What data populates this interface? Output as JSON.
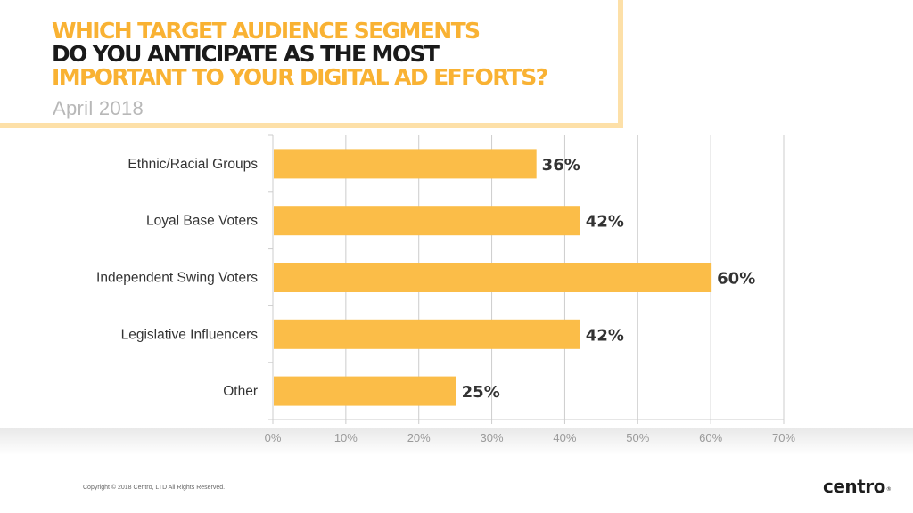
{
  "header": {
    "title_line1": "WHICH TARGET AUDIENCE SEGMENTS",
    "title_line2": "DO YOU ANTICIPATE  AS THE MOST",
    "title_line3": "IMPORTANT  TO  YOUR DIGITAL AD EFFORTS?",
    "subtitle": "April 2018"
  },
  "colors": {
    "accent": "#f9b233",
    "bar": "#fbbd48",
    "frame": "#fde0a8",
    "gridline": "#cccccc",
    "text": "#333333"
  },
  "chart_data": {
    "type": "bar",
    "orientation": "horizontal",
    "categories": [
      "Ethnic/Racial Groups",
      "Loyal Base Voters",
      "Independent Swing Voters",
      "Legislative Influencers",
      "Other"
    ],
    "values": [
      36,
      42,
      60,
      42,
      25
    ],
    "data_labels": [
      "36%",
      "42%",
      "60%",
      "42%",
      "25%"
    ],
    "x_ticks": [
      "0%",
      "10%",
      "20%",
      "30%",
      "40%",
      "50%",
      "60%",
      "70%"
    ],
    "xlim": [
      0,
      70
    ],
    "grid": true,
    "legend": "none"
  },
  "footer": {
    "copyright": "Copyright © 2018 Centro, LTD All Rights Reserved.",
    "logo_text": "centro",
    "logo_mark": "®"
  }
}
